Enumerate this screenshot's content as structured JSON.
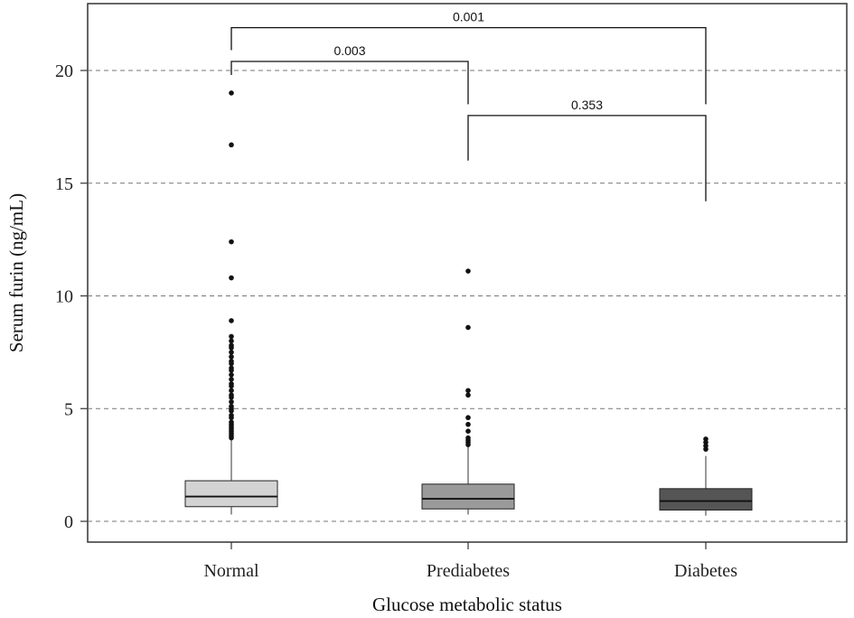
{
  "chart_data": {
    "type": "boxplot",
    "title": "",
    "xlabel": "Glucose metabolic status",
    "ylabel": "Serum furin (ng/mL)",
    "ylim": [
      -0.9,
      22.8
    ],
    "yticks": [
      0,
      5,
      10,
      15,
      20
    ],
    "grid": "horizontal dashed at y ticks",
    "categories": [
      "Normal",
      "Prediabetes",
      "Diabetes"
    ],
    "boxes": [
      {
        "name": "Normal",
        "fill": "#d3d3d3",
        "whisker_low": 0.3,
        "q1": 0.65,
        "median": 1.1,
        "q3": 1.8,
        "whisker_high": 3.6,
        "outliers": [
          19.0,
          16.7,
          12.4,
          10.8,
          8.9,
          8.2,
          8.0,
          7.8,
          7.7,
          7.5,
          7.3,
          7.1,
          7.0,
          6.8,
          6.7,
          6.5,
          6.3,
          6.1,
          6.0,
          5.8,
          5.6,
          5.5,
          5.3,
          5.1,
          5.0,
          4.9,
          4.7,
          4.6,
          4.4,
          4.3,
          4.2,
          4.1,
          4.0,
          3.9,
          3.8,
          3.7
        ]
      },
      {
        "name": "Prediabetes",
        "fill": "#9a9a9a",
        "whisker_low": 0.3,
        "q1": 0.55,
        "median": 1.0,
        "q3": 1.65,
        "whisker_high": 3.3,
        "outliers": [
          11.1,
          8.6,
          5.8,
          5.6,
          4.6,
          4.3,
          4.0,
          3.7,
          3.6,
          3.5,
          3.4
        ]
      },
      {
        "name": "Diabetes",
        "fill": "#555555",
        "whisker_low": 0.25,
        "q1": 0.5,
        "median": 0.9,
        "q3": 1.45,
        "whisker_high": 2.9,
        "outliers": [
          3.65,
          3.5,
          3.35,
          3.2
        ]
      }
    ],
    "comparisons": [
      {
        "from": "Normal",
        "to": "Diabetes",
        "label": "0.001",
        "bracket_y": 21.9,
        "leg_left": 20.9,
        "leg_right": 18.5
      },
      {
        "from": "Normal",
        "to": "Prediabetes",
        "label": "0.003",
        "bracket_y": 20.4,
        "leg_left": 19.8,
        "leg_right": 18.5
      },
      {
        "from": "Prediabetes",
        "to": "Diabetes",
        "label": "0.353",
        "bracket_y": 18.0,
        "leg_left": 16.0,
        "leg_right": 14.2
      }
    ]
  }
}
